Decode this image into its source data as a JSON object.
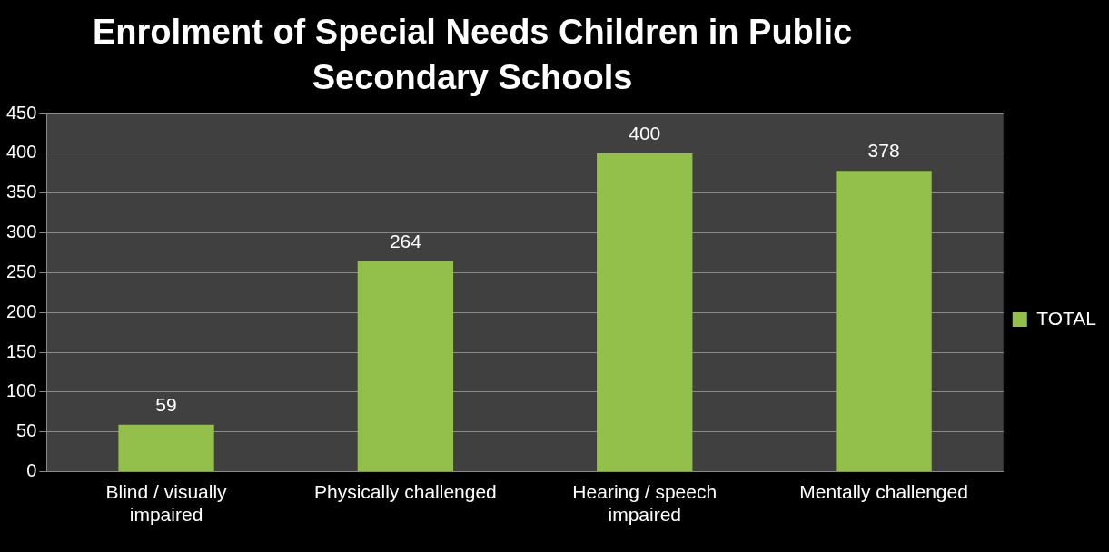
{
  "chart_data": {
    "type": "bar",
    "title": "Enrolment of Special Needs Children in Public Secondary Schools",
    "categories": [
      "Blind / visually impaired",
      "Physically challenged",
      "Hearing / speech impaired",
      "Mentally challenged"
    ],
    "series": [
      {
        "name": "TOTAL",
        "color": "#92c04a",
        "values": [
          59,
          264,
          400,
          378
        ]
      }
    ],
    "ylim": [
      0,
      450
    ],
    "yticks": [
      0,
      50,
      100,
      150,
      200,
      250,
      300,
      350,
      400,
      450
    ],
    "grid": "y",
    "legend": "right",
    "data_labels": true
  }
}
